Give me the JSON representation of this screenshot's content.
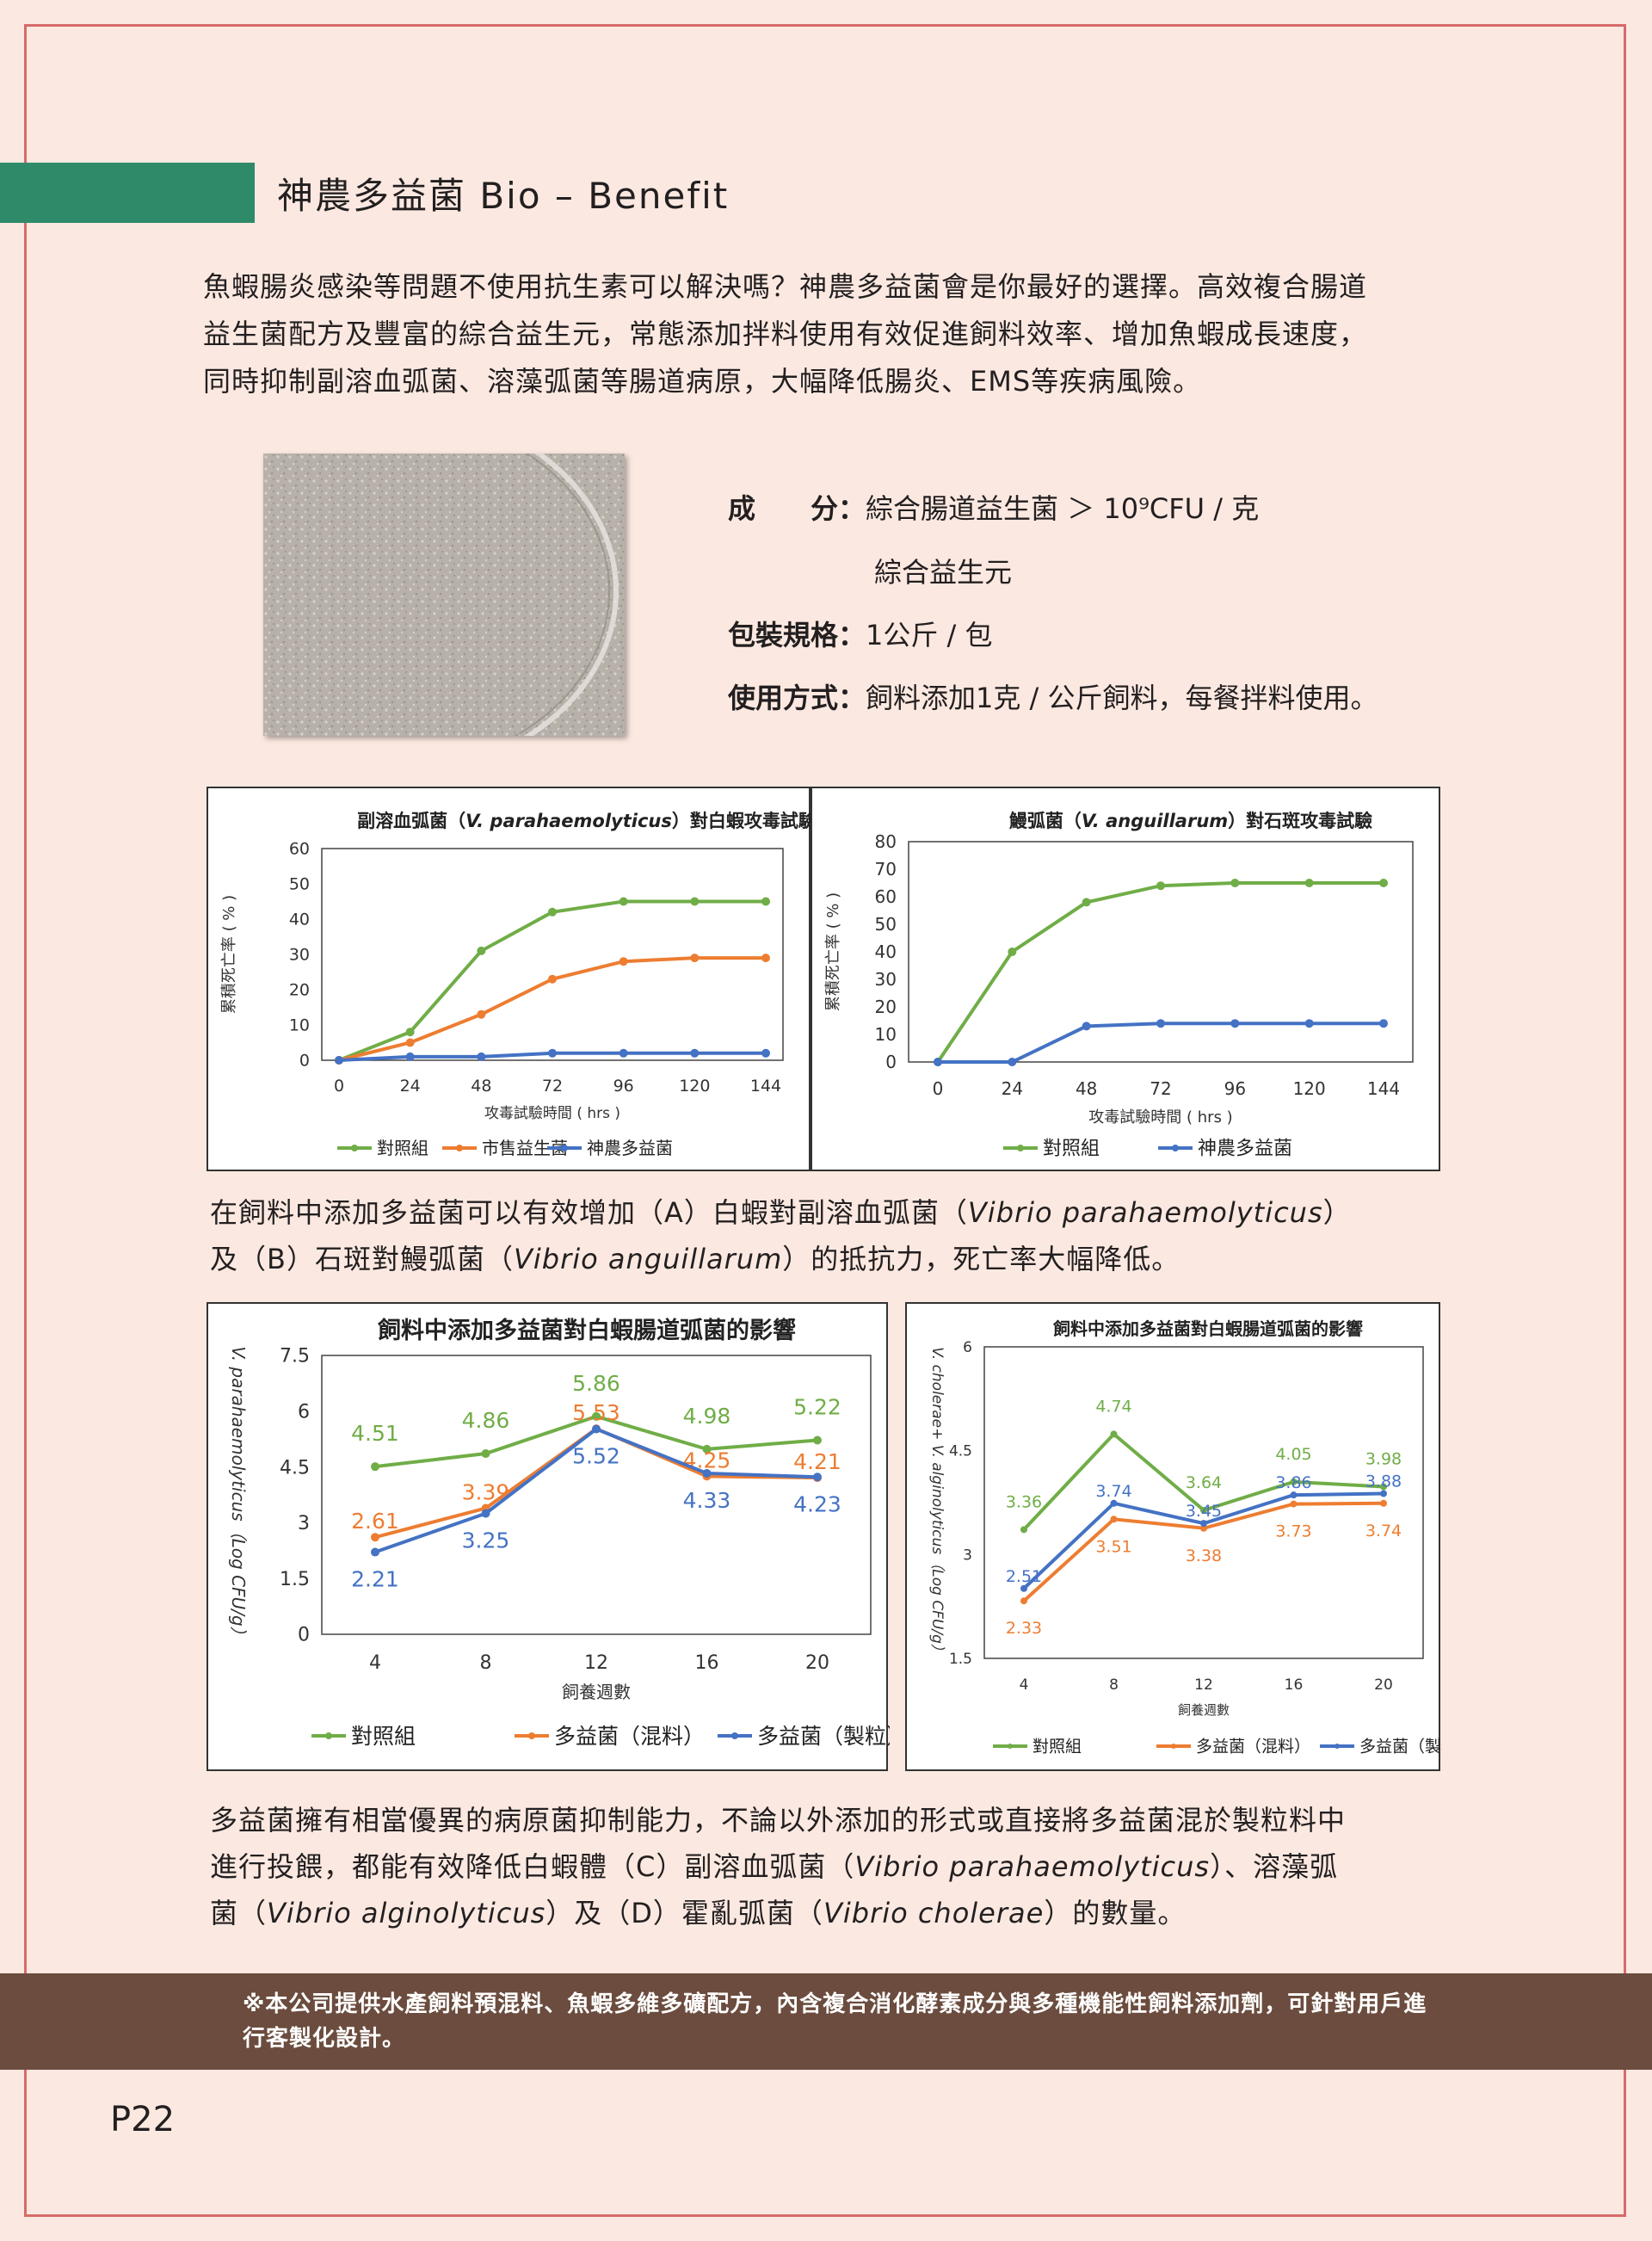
{
  "header": {
    "title": "神農多益菌 Bio – Benefit"
  },
  "intro": {
    "line1": "魚蝦腸炎感染等問題不使用抗生素可以解決嗎？神農多益菌會是你最好的選擇。高效複合腸道",
    "line2": "益生菌配方及豐富的綜合益生元，常態添加拌料使用有效促進飼料效率、增加魚蝦成長速度，",
    "line3": "同時抑制副溶血弧菌、溶藻弧菌等腸道病原，大幅降低腸炎、EMS等疾病風險。"
  },
  "specs": {
    "ingredient_label": "成　　分：",
    "ingredient_value": "綜合腸道益生菌 ＞ 10⁹CFU / 克",
    "ingredient_value2": "綜合益生元",
    "package_label": "包裝規格：",
    "package_value": "1公斤 / 包",
    "usage_label": "使用方式：",
    "usage_value": "飼料添加1克 / 公斤飼料，每餐拌料使用。"
  },
  "caption1": {
    "line1": "在飼料中添加多益菌可以有效增加（A）白蝦對副溶血弧菌（",
    "line1_italic": "Vibrio parahaemolyticus",
    "line1_end": "）",
    "line2_start": "及（B）石斑對鰻弧菌（",
    "line2_italic": "Vibrio anguillarum",
    "line2_end": "）的抵抗力，死亡率大幅降低。"
  },
  "caption2": {
    "line1": "多益菌擁有相當優異的病原菌抑制能力，不論以外添加的形式或直接將多益菌混於製粒料中",
    "line2_start": "進行投餵，都能有效降低白蝦體（C）副溶血弧菌（",
    "line2_italic": "Vibrio parahaemolyticus",
    "line2_end": "）、溶藻弧",
    "line3_start": "菌（",
    "line3_italic": "Vibrio alginolyticus",
    "line3_mid": "）及（D）霍亂弧菌（",
    "line3_italic2": "Vibrio cholerae",
    "line3_end": "）的數量。"
  },
  "footer": {
    "note": "※本公司提供水產飼料預混料、魚蝦多維多礦配方，內含複合消化酵素成分與多種機能性飼料添加劑，可針對用戶進行客製化設計。"
  },
  "page": {
    "number": "P22"
  },
  "colors": {
    "green": "#70ad47",
    "orange": "#ed7d31",
    "blue": "#4472c4",
    "tab": "#2f8a6a",
    "footer": "#6b4c3e"
  },
  "chart_data": [
    {
      "type": "line",
      "title_pre": "副溶血弧菌（",
      "title_italic": "V. parahaemolyticus",
      "title_post": "）對白蝦攻毒試驗",
      "xlabel": "攻毒試驗時間 ( hrs )",
      "ylabel": "累積死亡率 ( % )",
      "x": [
        0,
        24,
        48,
        72,
        96,
        120,
        144
      ],
      "ylim": [
        0,
        60
      ],
      "yticks": [
        0,
        10,
        20,
        30,
        40,
        50,
        60
      ],
      "series": [
        {
          "name": "對照組",
          "color": "#70ad47",
          "values": [
            0,
            8,
            31,
            42,
            45,
            45,
            45
          ]
        },
        {
          "name": "市售益生菌",
          "color": "#ed7d31",
          "values": [
            0,
            5,
            13,
            23,
            28,
            29,
            29
          ]
        },
        {
          "name": "神農多益菌",
          "color": "#4472c4",
          "values": [
            0,
            1,
            1,
            2,
            2,
            2,
            2
          ]
        }
      ]
    },
    {
      "type": "line",
      "title_pre": "鰻弧菌（",
      "title_italic": "V. anguillarum",
      "title_post": "）對石斑攻毒試驗",
      "xlabel": "攻毒試驗時間 ( hrs )",
      "ylabel": "累積死亡率 ( % )",
      "x": [
        0,
        24,
        48,
        72,
        96,
        120,
        144
      ],
      "ylim": [
        0,
        80
      ],
      "yticks": [
        0,
        10,
        20,
        30,
        40,
        50,
        60,
        70,
        80
      ],
      "series": [
        {
          "name": "對照組",
          "color": "#70ad47",
          "values": [
            0,
            40,
            58,
            64,
            65,
            65,
            65
          ]
        },
        {
          "name": "神農多益菌",
          "color": "#4472c4",
          "values": [
            0,
            0,
            13,
            14,
            14,
            14,
            14
          ]
        }
      ]
    },
    {
      "type": "line",
      "title": "飼料中添加多益菌對白蝦腸道弧菌的影響",
      "xlabel": "飼養週數",
      "ylabel": "V. parahaemolyticus（Log CFU/g）",
      "x": [
        4,
        8,
        12,
        16,
        20
      ],
      "ylim": [
        0,
        7.5
      ],
      "yticks": [
        "0",
        "1.5",
        "3",
        "4.5",
        "6",
        "7.5"
      ],
      "series": [
        {
          "name": "對照組",
          "color": "#70ad47",
          "values": [
            4.51,
            4.86,
            5.86,
            4.98,
            5.22
          ]
        },
        {
          "name": "多益菌（混料）",
          "color": "#ed7d31",
          "values": [
            2.61,
            3.39,
            5.53,
            4.25,
            4.21
          ]
        },
        {
          "name": "多益菌（製粒）",
          "color": "#4472c4",
          "values": [
            2.21,
            3.25,
            5.52,
            4.33,
            4.23
          ]
        }
      ]
    },
    {
      "type": "line",
      "title": "飼料中添加多益菌對白蝦腸道弧菌的影響",
      "xlabel": "飼養週數",
      "ylabel": "V. cholerae+ V. alginolyticus（Log CFU/g）",
      "x": [
        4,
        8,
        12,
        16,
        20
      ],
      "ylim": [
        1.5,
        6
      ],
      "yticks": [
        "1.5",
        "3",
        "4.5",
        "6"
      ],
      "series": [
        {
          "name": "對照組",
          "color": "#70ad47",
          "values": [
            3.36,
            4.74,
            3.64,
            4.05,
            3.98
          ]
        },
        {
          "name": "多益菌（混料）",
          "color": "#ed7d31",
          "values": [
            2.33,
            3.51,
            3.38,
            3.73,
            3.74
          ]
        },
        {
          "name": "多益菌（製粒）",
          "color": "#4472c4",
          "values": [
            2.51,
            3.74,
            3.45,
            3.86,
            3.88
          ]
        }
      ]
    }
  ]
}
